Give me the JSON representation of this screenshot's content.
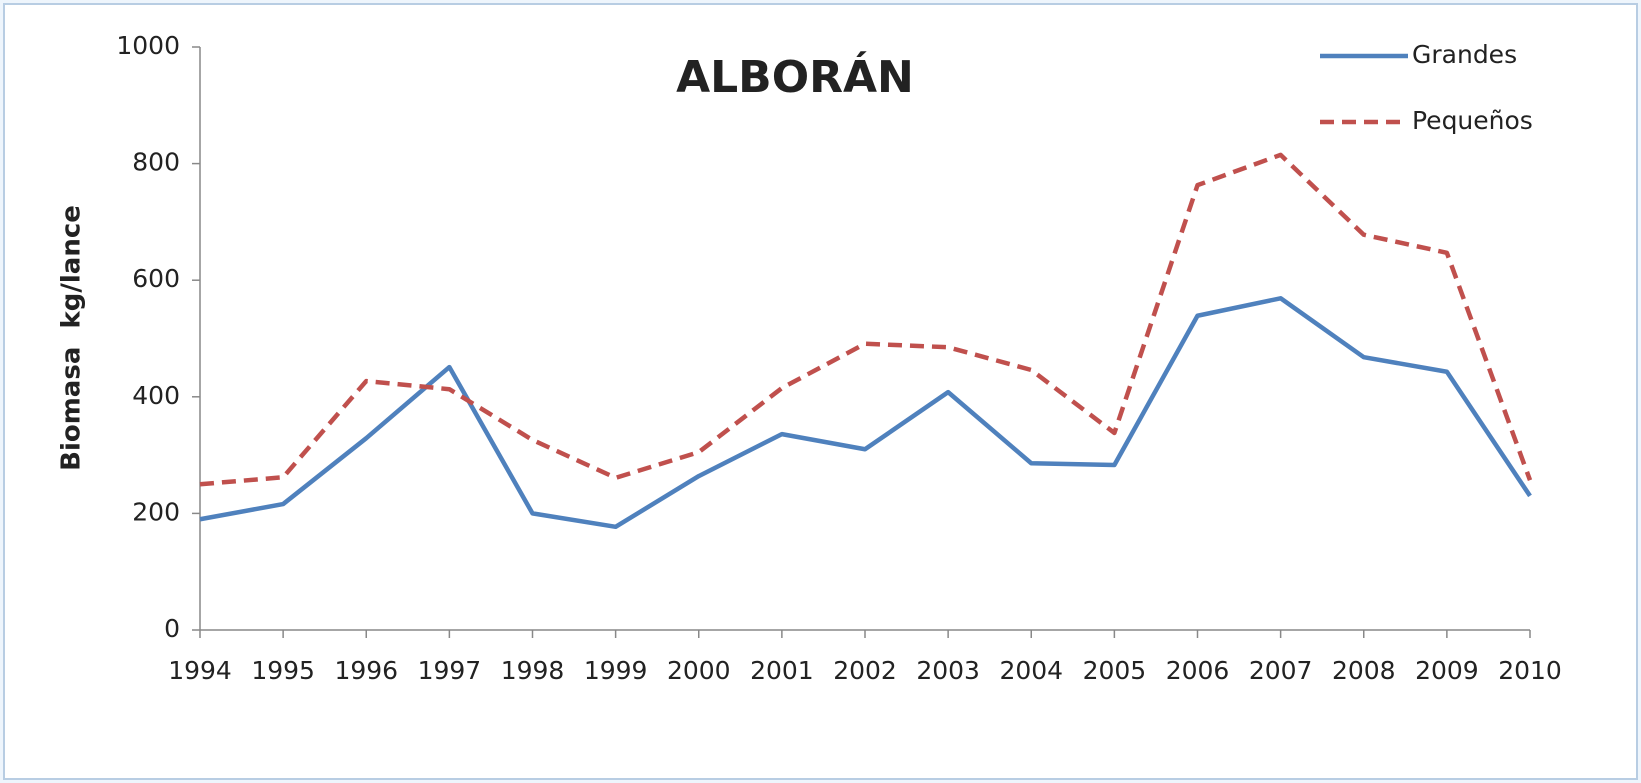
{
  "chart_data": {
    "type": "line",
    "title": "ALBORÁN",
    "y_label": "Biomasa  kg/lance",
    "categories": [
      "1994",
      "1995",
      "1996",
      "1997",
      "1998",
      "1999",
      "2000",
      "2001",
      "2002",
      "2003",
      "2004",
      "2005",
      "2006",
      "2007",
      "2008",
      "2009",
      "2010"
    ],
    "series": [
      {
        "name": "Grandes",
        "color": "#4f81bd",
        "style": "solid",
        "values": [
          190,
          216,
          329,
          451,
          200,
          177,
          264,
          336,
          310,
          408,
          286,
          283,
          539,
          569,
          468,
          443,
          230
        ]
      },
      {
        "name": "Pequeños",
        "color": "#c0504d",
        "style": "dashed",
        "values": [
          250,
          262,
          427,
          413,
          326,
          261,
          305,
          415,
          491,
          485,
          446,
          338,
          763,
          815,
          678,
          647,
          257
        ]
      }
    ],
    "ylim": [
      0,
      1000
    ],
    "yticks": [
      0,
      200,
      400,
      600,
      800,
      1000
    ],
    "grid": false,
    "legend": "upper right"
  }
}
